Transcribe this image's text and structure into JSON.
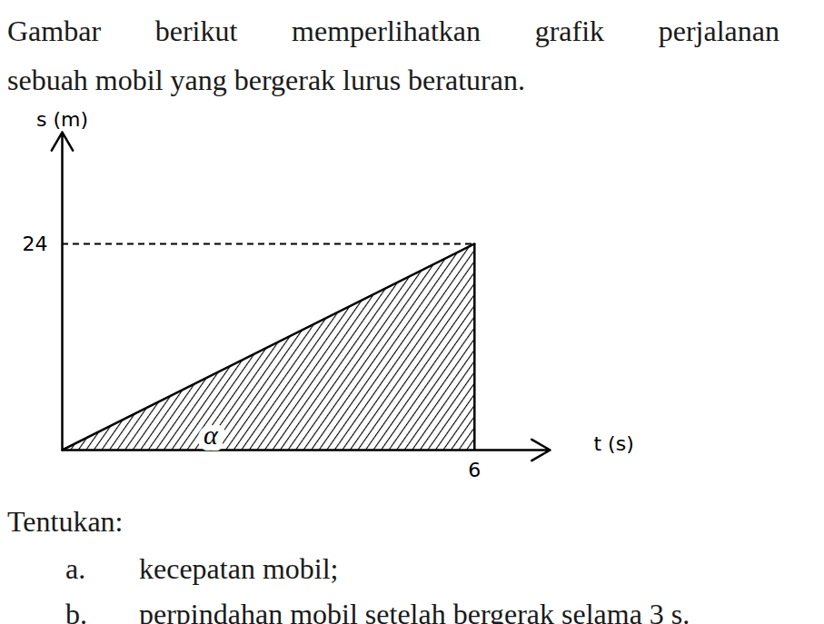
{
  "intro": [
    "Gambar berikut memperlihatkan grafik perjalanan",
    "sebuah mobil yang bergerak lurus beraturan."
  ],
  "chart_data": {
    "type": "area",
    "x": [
      0,
      6
    ],
    "values": [
      0,
      24
    ],
    "color": "#000000",
    "line_style": "solid",
    "xlabel": "t (s)",
    "ylabel": "s (m)",
    "xlim": [
      0,
      7.1
    ],
    "ylim": [
      0,
      37
    ],
    "xticks": [
      6
    ],
    "yticks": [
      24
    ],
    "annotations": [
      "α"
    ],
    "grid": false
  },
  "instruction": "Tentukan:",
  "questions": [
    {
      "label": "a.",
      "text": "kecepatan mobil;"
    },
    {
      "label": "b.",
      "text": "perpindahan mobil setelah bergerak selama 3 s."
    }
  ]
}
